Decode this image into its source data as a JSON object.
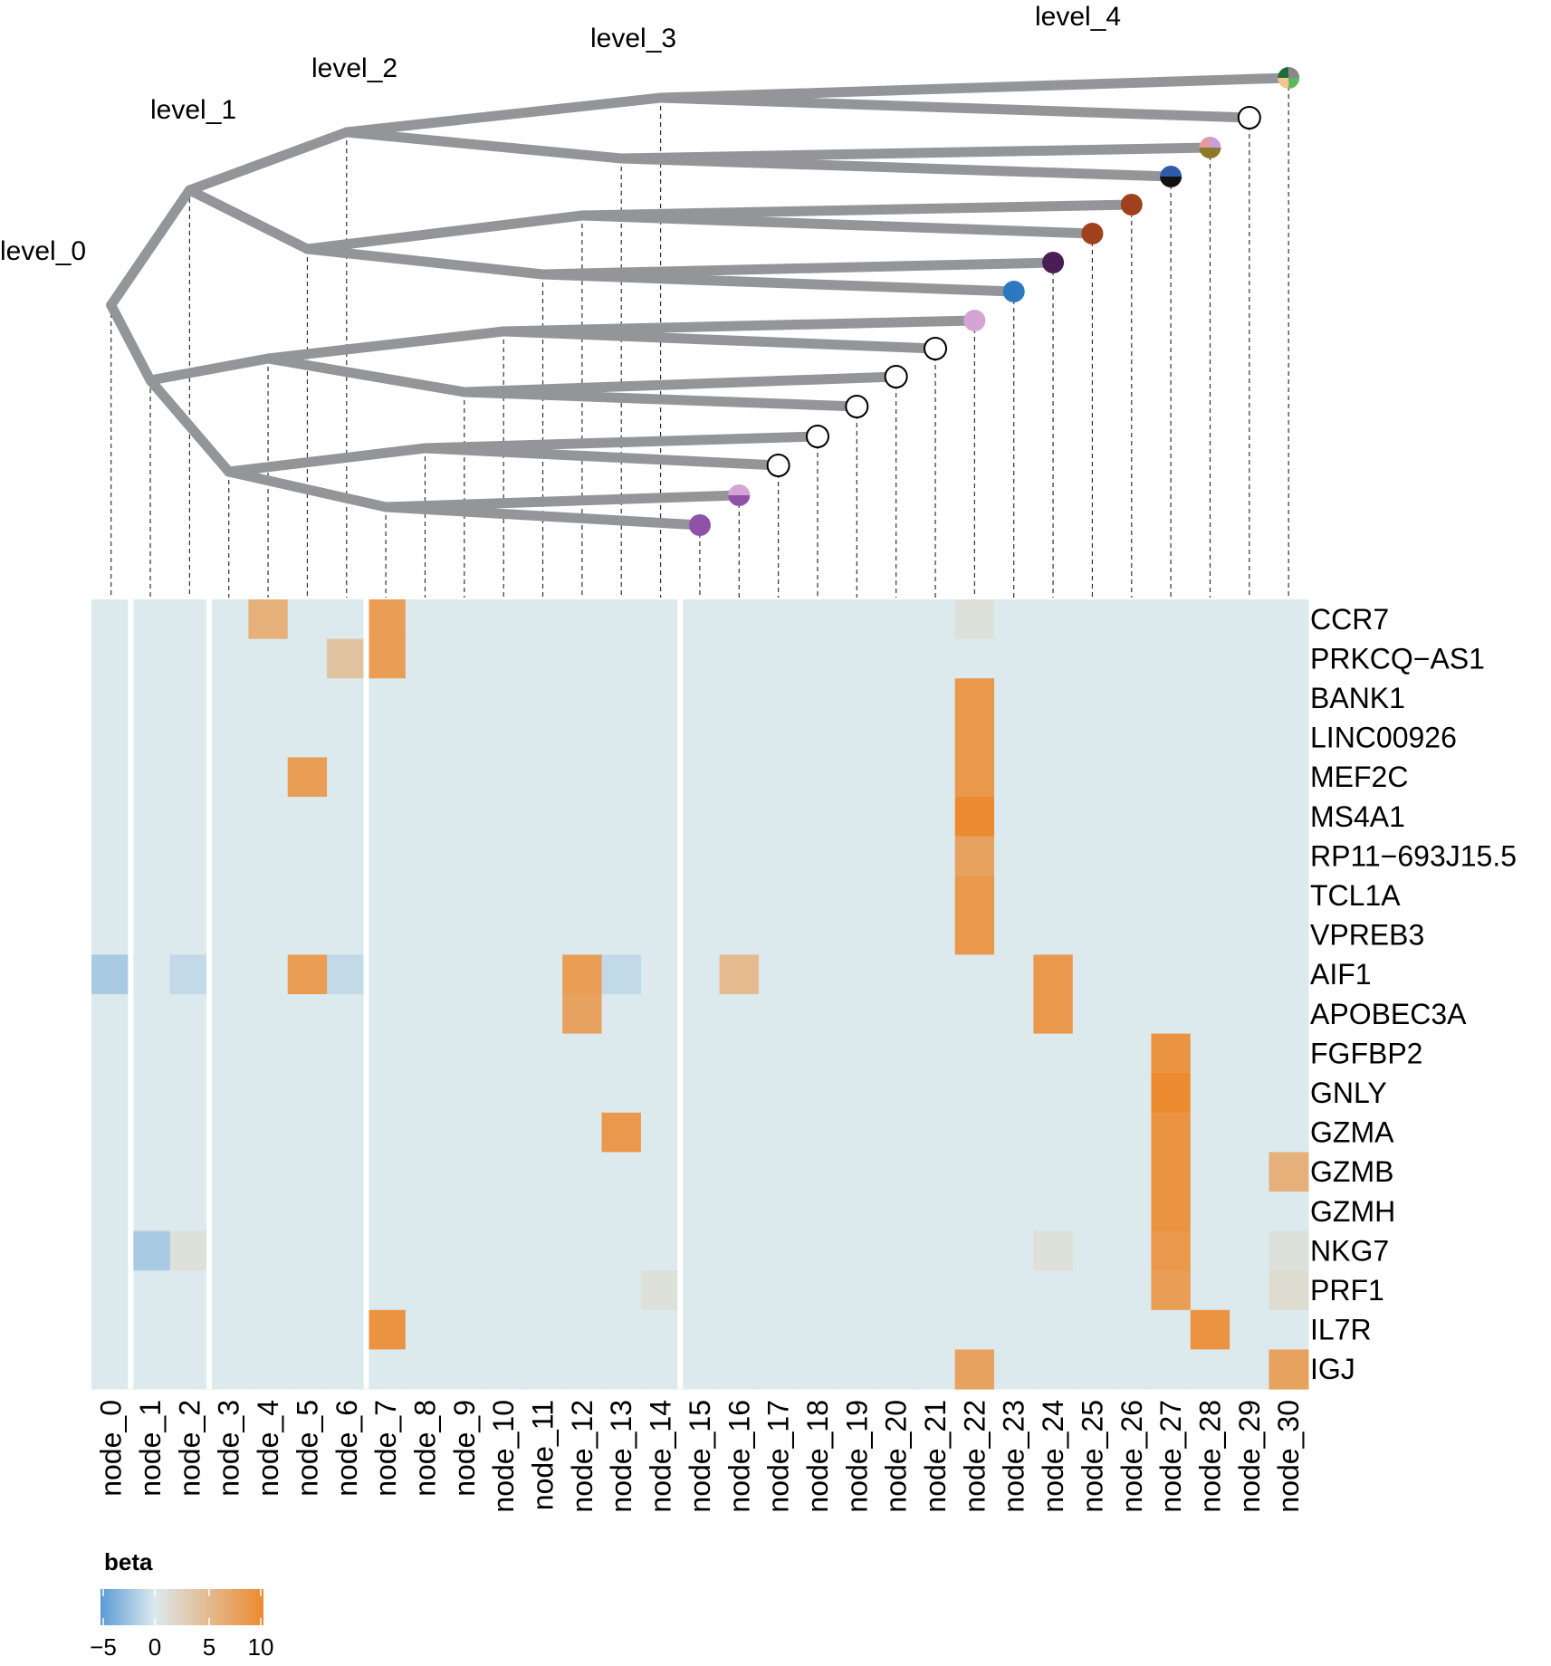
{
  "chart_data": {
    "type": "heatmap",
    "title": "",
    "legend_title": "beta",
    "legend_ticks": [
      "−5",
      "0",
      "5",
      "10"
    ],
    "color_range": [
      -5,
      10
    ],
    "colors": {
      "low": "#5b9bd5",
      "zero": "#dce9ed",
      "high": "#ec8a2f",
      "branch": "#939598"
    },
    "levels": [
      "level_0",
      "level_1",
      "level_2",
      "level_3",
      "level_4"
    ],
    "nodes": [
      "node_0",
      "node_1",
      "node_2",
      "node_3",
      "node_4",
      "node_5",
      "node_6",
      "node_7",
      "node_8",
      "node_9",
      "node_10",
      "node_11",
      "node_12",
      "node_13",
      "node_14",
      "node_15",
      "node_16",
      "node_17",
      "node_18",
      "node_19",
      "node_20",
      "node_21",
      "node_22",
      "node_23",
      "node_24",
      "node_25",
      "node_26",
      "node_27",
      "node_28",
      "node_29",
      "node_30"
    ],
    "genes": [
      "CCR7",
      "PRKCQ−AS1",
      "BANK1",
      "LINC00926",
      "MEF2C",
      "MS4A1",
      "RP11−693J15.5",
      "TCL1A",
      "VPREB3",
      "AIF1",
      "APOBEC3A",
      "FGFBP2",
      "GNLY",
      "GZMA",
      "GZMB",
      "GZMH",
      "NKG7",
      "PRF1",
      "IL7R",
      "IGJ"
    ],
    "nonzero_values": [
      {
        "gene": "CCR7",
        "node": "node_4",
        "value": 6
      },
      {
        "gene": "CCR7",
        "node": "node_7",
        "value": 8
      },
      {
        "gene": "CCR7",
        "node": "node_22",
        "value": 1
      },
      {
        "gene": "PRKCQ−AS1",
        "node": "node_6",
        "value": 4
      },
      {
        "gene": "PRKCQ−AS1",
        "node": "node_7",
        "value": 8
      },
      {
        "gene": "BANK1",
        "node": "node_22",
        "value": 8.5
      },
      {
        "gene": "LINC00926",
        "node": "node_22",
        "value": 8.5
      },
      {
        "gene": "MEF2C",
        "node": "node_5",
        "value": 8
      },
      {
        "gene": "MEF2C",
        "node": "node_22",
        "value": 8.5
      },
      {
        "gene": "MS4A1",
        "node": "node_22",
        "value": 10
      },
      {
        "gene": "RP11−693J15.5",
        "node": "node_22",
        "value": 7.5
      },
      {
        "gene": "TCL1A",
        "node": "node_22",
        "value": 8.5
      },
      {
        "gene": "VPREB3",
        "node": "node_22",
        "value": 8.5
      },
      {
        "gene": "AIF1",
        "node": "node_0",
        "value": -2
      },
      {
        "gene": "AIF1",
        "node": "node_2",
        "value": -1
      },
      {
        "gene": "AIF1",
        "node": "node_5",
        "value": 8
      },
      {
        "gene": "AIF1",
        "node": "node_6",
        "value": -1
      },
      {
        "gene": "AIF1",
        "node": "node_12",
        "value": 8
      },
      {
        "gene": "AIF1",
        "node": "node_13",
        "value": -1
      },
      {
        "gene": "AIF1",
        "node": "node_16",
        "value": 5
      },
      {
        "gene": "AIF1",
        "node": "node_24",
        "value": 8.5
      },
      {
        "gene": "APOBEC3A",
        "node": "node_12",
        "value": 7.5
      },
      {
        "gene": "APOBEC3A",
        "node": "node_24",
        "value": 8.5
      },
      {
        "gene": "FGFBP2",
        "node": "node_27",
        "value": 9
      },
      {
        "gene": "GNLY",
        "node": "node_27",
        "value": 10
      },
      {
        "gene": "GZMA",
        "node": "node_13",
        "value": 8.5
      },
      {
        "gene": "GZMA",
        "node": "node_27",
        "value": 9
      },
      {
        "gene": "GZMB",
        "node": "node_27",
        "value": 9
      },
      {
        "gene": "GZMB",
        "node": "node_30",
        "value": 6
      },
      {
        "gene": "GZMH",
        "node": "node_27",
        "value": 9
      },
      {
        "gene": "NKG7",
        "node": "node_1",
        "value": -2
      },
      {
        "gene": "NKG7",
        "node": "node_2",
        "value": 1
      },
      {
        "gene": "NKG7",
        "node": "node_24",
        "value": 1
      },
      {
        "gene": "NKG7",
        "node": "node_27",
        "value": 8.5
      },
      {
        "gene": "NKG7",
        "node": "node_30",
        "value": 1
      },
      {
        "gene": "PRF1",
        "node": "node_14",
        "value": 1
      },
      {
        "gene": "PRF1",
        "node": "node_27",
        "value": 8
      },
      {
        "gene": "PRF1",
        "node": "node_30",
        "value": 1.5
      },
      {
        "gene": "IL7R",
        "node": "node_7",
        "value": 9
      },
      {
        "gene": "IL7R",
        "node": "node_28",
        "value": 9
      },
      {
        "gene": "IGJ",
        "node": "node_22",
        "value": 7.5
      },
      {
        "gene": "IGJ",
        "node": "node_30",
        "value": 7.5
      }
    ],
    "tree": {
      "edges": [
        [
          "node_0",
          "node_1"
        ],
        [
          "node_0",
          "node_2"
        ],
        [
          "node_1",
          "node_3"
        ],
        [
          "node_1",
          "node_4"
        ],
        [
          "node_2",
          "node_5"
        ],
        [
          "node_2",
          "node_6"
        ],
        [
          "node_3",
          "node_7"
        ],
        [
          "node_3",
          "node_8"
        ],
        [
          "node_4",
          "node_9"
        ],
        [
          "node_4",
          "node_10"
        ],
        [
          "node_5",
          "node_11"
        ],
        [
          "node_5",
          "node_12"
        ],
        [
          "node_6",
          "node_13"
        ],
        [
          "node_6",
          "node_14"
        ],
        [
          "node_7",
          "node_15"
        ],
        [
          "node_7",
          "node_16"
        ],
        [
          "node_8",
          "node_17"
        ],
        [
          "node_8",
          "node_18"
        ],
        [
          "node_9",
          "node_19"
        ],
        [
          "node_9",
          "node_20"
        ],
        [
          "node_10",
          "node_21"
        ],
        [
          "node_10",
          "node_22"
        ],
        [
          "node_11",
          "node_23"
        ],
        [
          "node_11",
          "node_24"
        ],
        [
          "node_12",
          "node_25"
        ],
        [
          "node_12",
          "node_26"
        ],
        [
          "node_13",
          "node_27"
        ],
        [
          "node_13",
          "node_28"
        ],
        [
          "node_14",
          "node_29"
        ],
        [
          "node_14",
          "node_30"
        ]
      ],
      "leaf_markers": {
        "node_15": [
          "#8e52a8"
        ],
        "node_16": [
          "#d4a5d4",
          "#8e52a8"
        ],
        "node_17": [],
        "node_18": [],
        "node_19": [],
        "node_20": [],
        "node_21": [],
        "node_22": [
          "#d4a5d4"
        ],
        "node_23": [
          "#2e78c2"
        ],
        "node_24": [
          "#4a1d55"
        ],
        "node_25": [
          "#a0401c"
        ],
        "node_26": [
          "#a0401c"
        ],
        "node_27": [
          "#2e5ba8",
          "#111111"
        ],
        "node_28": [
          "#e69aa0",
          "#c9a0dc",
          "#8b7a2a",
          "#8b7a2a"
        ],
        "node_29": [],
        "node_30": [
          "#1f6b3a",
          "#888888",
          "#5cb85c",
          "#f2c38a"
        ]
      }
    }
  }
}
